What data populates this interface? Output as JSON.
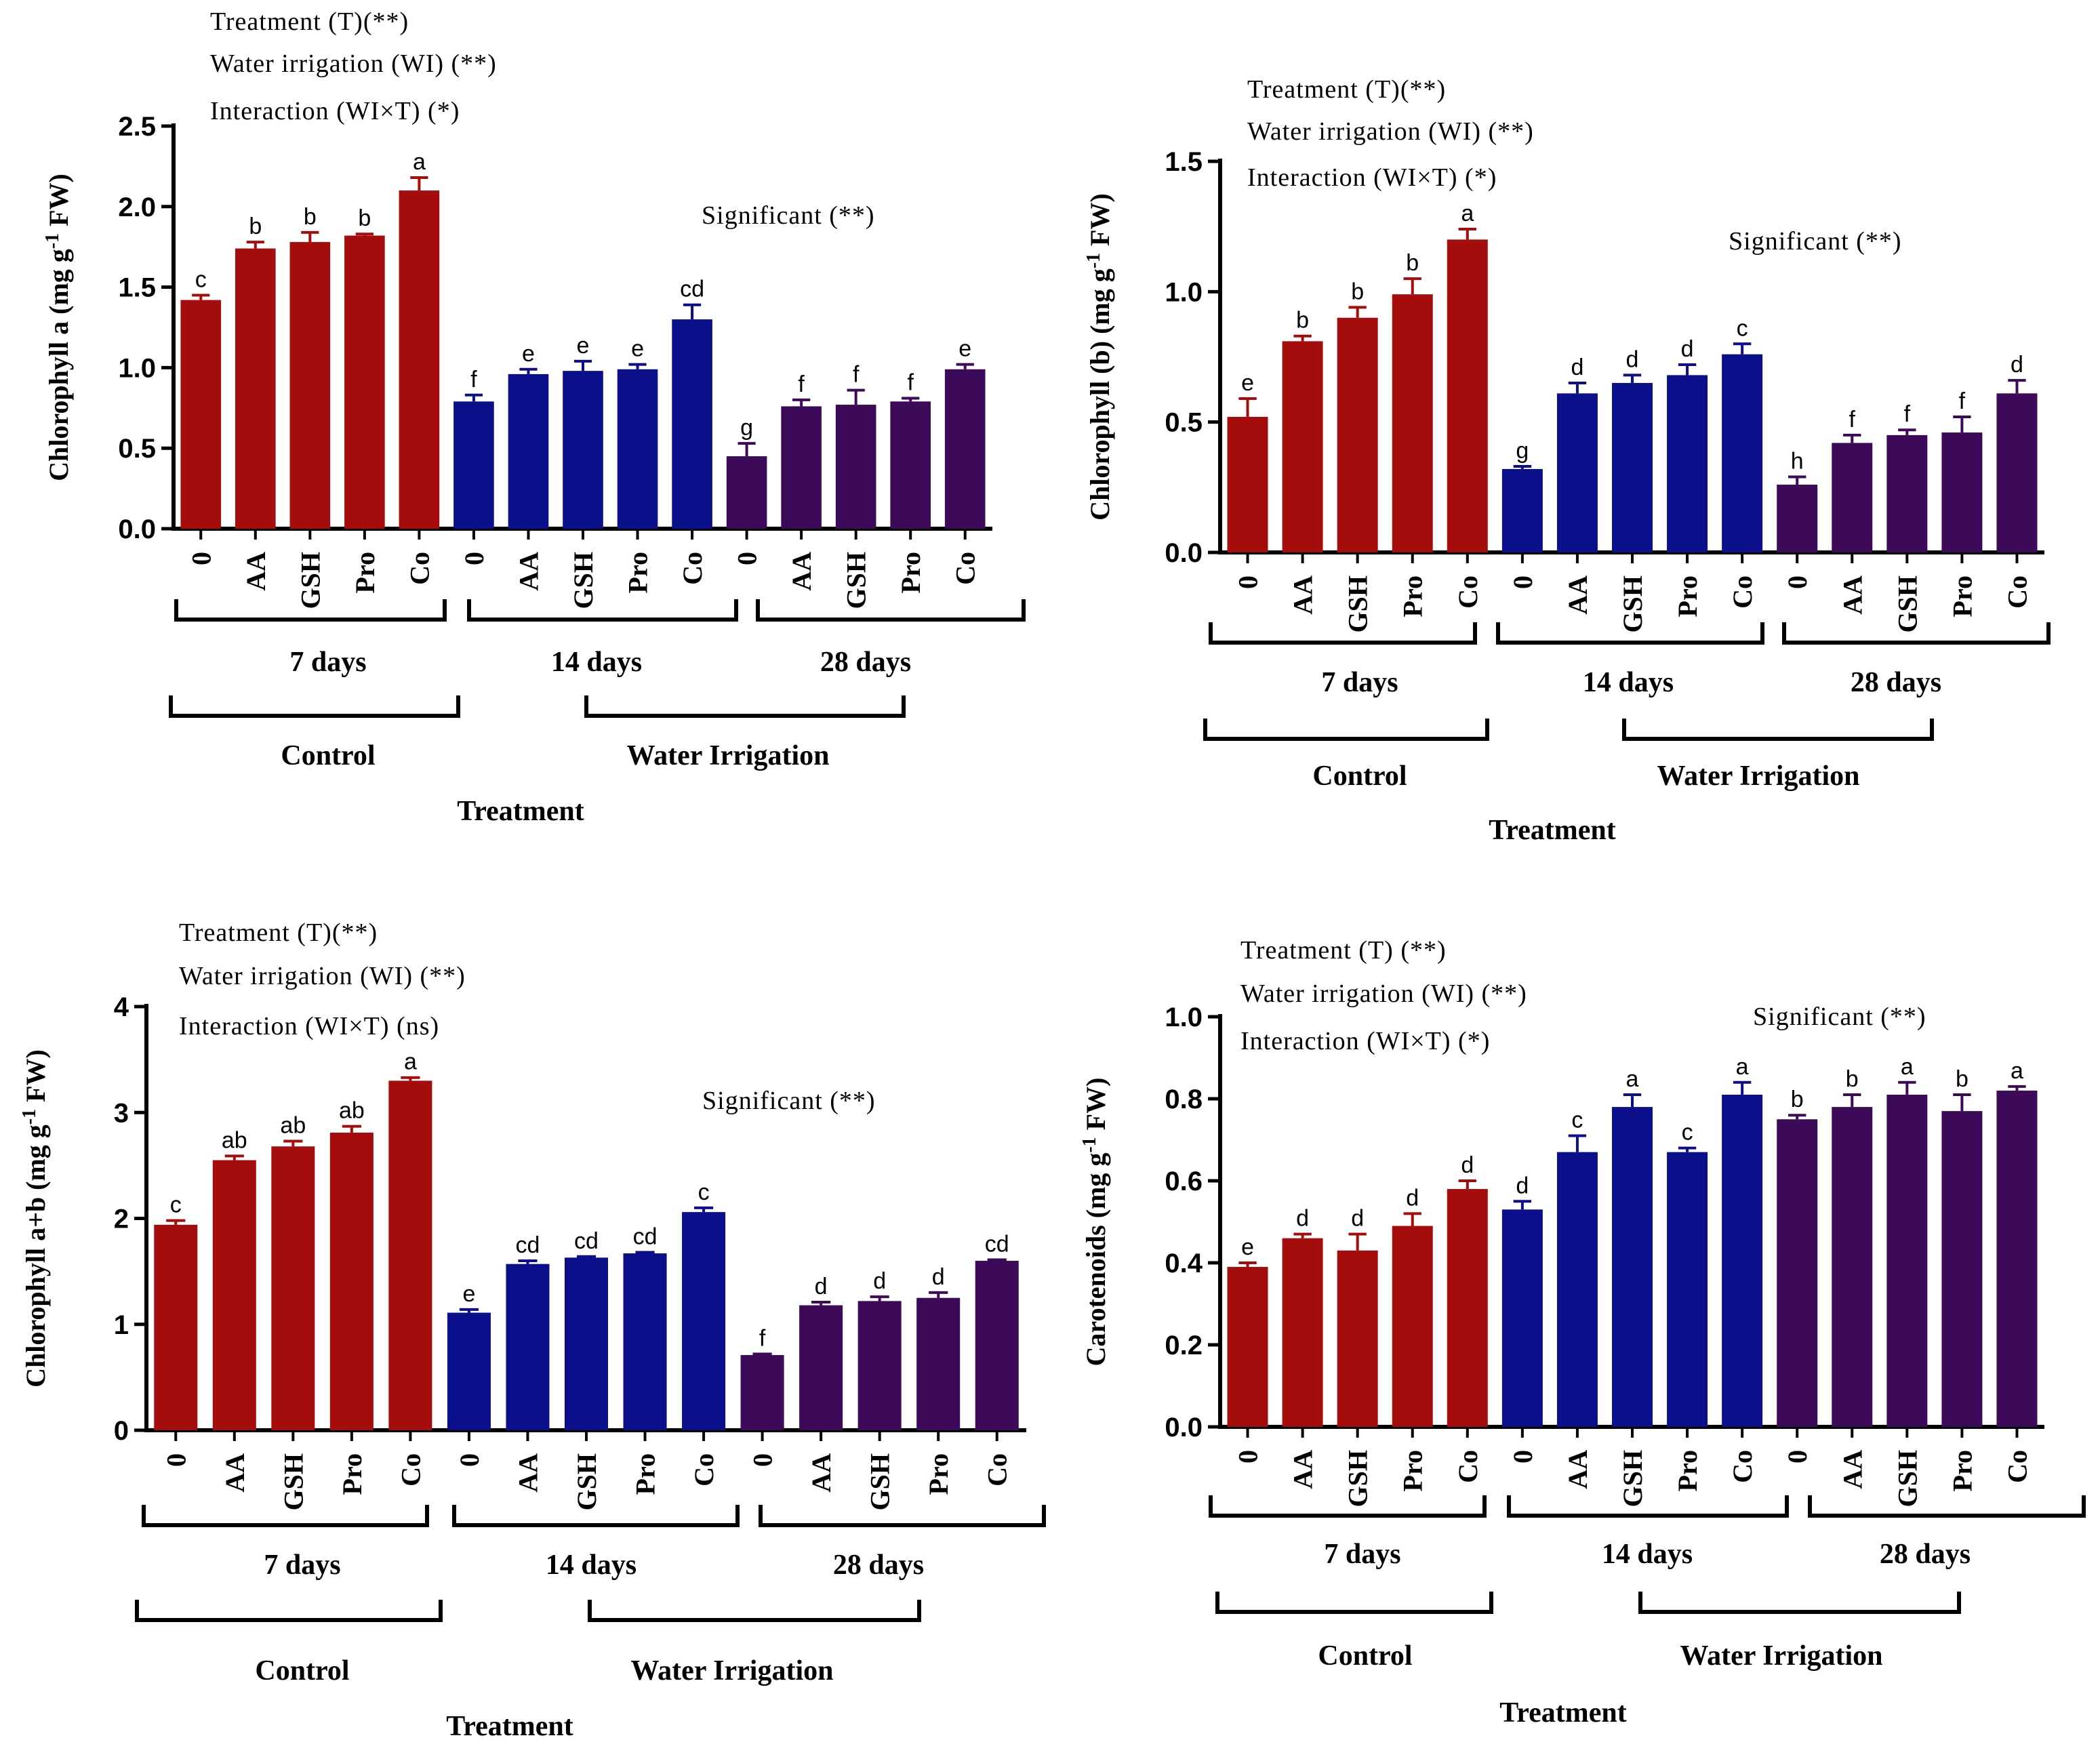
{
  "colors": {
    "control": "#a50d0d",
    "day14": "#0b0f8a",
    "day28": "#3d0a5a",
    "axis": "#000000"
  },
  "category_labels": [
    "0",
    "AA",
    "GSH",
    "Pro",
    "Co"
  ],
  "chart_data": [
    {
      "type": "bar",
      "id": "chlorophyll-a",
      "ylabel_main": "Chlorophyll a (mg g",
      "ylabel_sup": "-1",
      "ylabel_tail": " FW)",
      "ylim": [
        0,
        2.5
      ],
      "yticks": [
        "0.0",
        "0.5",
        "1.0",
        "1.5",
        "2.0",
        "2.5"
      ],
      "annotations": [
        "Treatment (T)(**)",
        "Water irrigation (WI) (**)",
        "Interaction (WI×T) (*)"
      ],
      "significance": "Significant (**)",
      "groups": [
        {
          "label": "7 days",
          "values": [
            1.42,
            1.74,
            1.78,
            1.82,
            2.1
          ],
          "errors": [
            0.03,
            0.04,
            0.06,
            0.01,
            0.08
          ],
          "letters": [
            "c",
            "b",
            "b",
            "b",
            "a"
          ]
        },
        {
          "label": "14 days",
          "values": [
            0.79,
            0.96,
            0.98,
            0.99,
            1.3
          ],
          "errors": [
            0.04,
            0.03,
            0.06,
            0.03,
            0.09
          ],
          "letters": [
            "f",
            "e",
            "e",
            "e",
            "cd"
          ]
        },
        {
          "label": "28 days",
          "values": [
            0.45,
            0.76,
            0.77,
            0.79,
            0.99
          ],
          "errors": [
            0.08,
            0.04,
            0.09,
            0.02,
            0.03
          ],
          "letters": [
            "g",
            "f",
            "f",
            "f",
            "e"
          ]
        }
      ],
      "brackets": [
        "Control",
        "Water Irrigation"
      ],
      "xlabel": "Treatment"
    },
    {
      "type": "bar",
      "id": "chlorophyll-b",
      "ylabel_main": "Chlorophyll (b) (mg g",
      "ylabel_sup": "-1",
      "ylabel_tail": " FW)",
      "ylim": [
        0,
        1.5
      ],
      "yticks": [
        "0.0",
        "0.5",
        "1.0",
        "1.5"
      ],
      "annotations": [
        "Treatment (T)(**)",
        "Water irrigation (WI) (**)",
        "Interaction (WI×T) (*)"
      ],
      "significance": "Significant (**)",
      "groups": [
        {
          "label": "7 days",
          "values": [
            0.52,
            0.81,
            0.9,
            0.99,
            1.2
          ],
          "errors": [
            0.07,
            0.02,
            0.04,
            0.06,
            0.04
          ],
          "letters": [
            "e",
            "b",
            "b",
            "b",
            "a"
          ]
        },
        {
          "label": "14 days",
          "values": [
            0.32,
            0.61,
            0.65,
            0.68,
            0.76
          ],
          "errors": [
            0.01,
            0.04,
            0.03,
            0.04,
            0.04
          ],
          "letters": [
            "g",
            "d",
            "d",
            "d",
            "c"
          ]
        },
        {
          "label": "28 days",
          "values": [
            0.26,
            0.42,
            0.45,
            0.46,
            0.61
          ],
          "errors": [
            0.03,
            0.03,
            0.02,
            0.06,
            0.05
          ],
          "letters": [
            "h",
            "f",
            "f",
            "f",
            "d"
          ]
        }
      ],
      "brackets": [
        "Control",
        "Water Irrigation"
      ],
      "xlabel": "Treatment"
    },
    {
      "type": "bar",
      "id": "chlorophyll-ab",
      "ylabel_main": "Chlorophyll a+b (mg g",
      "ylabel_sup": "-1",
      "ylabel_tail": " FW)",
      "ylim": [
        0,
        4
      ],
      "yticks": [
        "0",
        "1",
        "2",
        "3",
        "4"
      ],
      "annotations": [
        "Treatment (T)(**)",
        "Water irrigation (WI) (**)",
        "Interaction (WI×T) (ns)"
      ],
      "significance": "Significant (**)",
      "groups": [
        {
          "label": "7 days",
          "values": [
            1.94,
            2.55,
            2.68,
            2.81,
            3.3
          ],
          "errors": [
            0.04,
            0.04,
            0.05,
            0.06,
            0.03
          ],
          "letters": [
            "c",
            "ab",
            "ab",
            "ab",
            "a"
          ]
        },
        {
          "label": "14 days",
          "values": [
            1.11,
            1.57,
            1.63,
            1.67,
            2.06
          ],
          "errors": [
            0.03,
            0.03,
            0.01,
            0.01,
            0.04
          ],
          "letters": [
            "e",
            "cd",
            "cd",
            "cd",
            "c"
          ]
        },
        {
          "label": "28 days",
          "values": [
            0.71,
            1.18,
            1.22,
            1.25,
            1.6
          ],
          "errors": [
            0.01,
            0.03,
            0.04,
            0.05,
            0.01
          ],
          "letters": [
            "f",
            "d",
            "d",
            "d",
            "cd"
          ]
        }
      ],
      "brackets": [
        "Control",
        "Water Irrigation"
      ],
      "xlabel": "Treatment"
    },
    {
      "type": "bar",
      "id": "carotenoids",
      "ylabel_main": "Carotenoids (mg g",
      "ylabel_sup": "-1",
      "ylabel_tail": " FW)",
      "ylim": [
        0,
        1.0
      ],
      "yticks": [
        "0.0",
        "0.2",
        "0.4",
        "0.6",
        "0.8",
        "1.0"
      ],
      "annotations": [
        "Treatment (T) (**)",
        "Water irrigation (WI) (**)",
        "Interaction (WI×T) (*)"
      ],
      "significance": "Significant (**)",
      "groups": [
        {
          "label": "7 days",
          "values": [
            0.39,
            0.46,
            0.43,
            0.49,
            0.58
          ],
          "errors": [
            0.01,
            0.01,
            0.04,
            0.03,
            0.02
          ],
          "letters": [
            "e",
            "d",
            "d",
            "d",
            "d"
          ]
        },
        {
          "label": "14 days",
          "values": [
            0.53,
            0.67,
            0.78,
            0.67,
            0.81
          ],
          "errors": [
            0.02,
            0.04,
            0.03,
            0.01,
            0.03
          ],
          "letters": [
            "d",
            "c",
            "a",
            "c",
            "a"
          ]
        },
        {
          "label": "28 days",
          "values": [
            0.75,
            0.78,
            0.81,
            0.77,
            0.82
          ],
          "errors": [
            0.01,
            0.03,
            0.03,
            0.04,
            0.01
          ],
          "letters": [
            "b",
            "b",
            "a",
            "b",
            "a"
          ]
        }
      ],
      "brackets": [
        "Control",
        "Water Irrigation"
      ],
      "xlabel": "Treatment"
    }
  ]
}
